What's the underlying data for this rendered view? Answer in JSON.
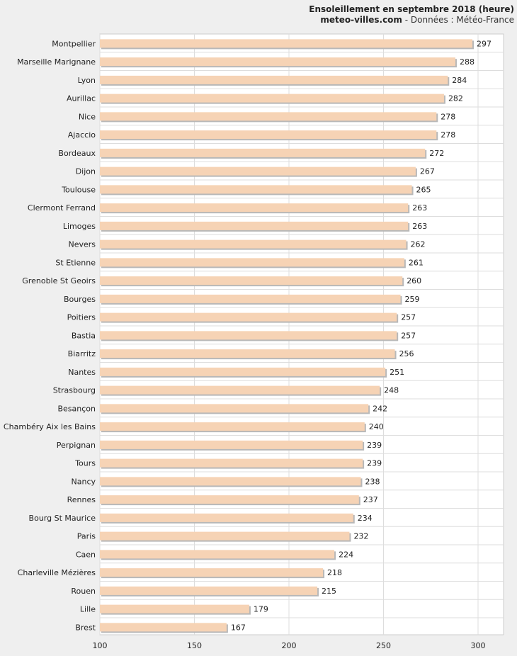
{
  "header": {
    "title": "Ensoleillement en septembre 2018 (heure)",
    "site": "meteo-villes.com",
    "source": " - Données : Météo-France"
  },
  "colors": {
    "bar": "#f6d3b5",
    "bar_shadow": "#b8b8b8",
    "background": "#efefef",
    "plot_background": "#ffffff",
    "grid": "#dddddd"
  },
  "chart_data": {
    "type": "bar",
    "orientation": "horizontal",
    "title": "Ensoleillement en septembre 2018 (heure)",
    "xlim": [
      100,
      315
    ],
    "xticks": [
      100,
      150,
      200,
      250,
      300
    ],
    "grid": true,
    "categories": [
      "Montpellier",
      "Marseille Marignane",
      "Lyon",
      "Aurillac",
      "Nice",
      "Ajaccio",
      "Bordeaux",
      "Dijon",
      "Toulouse",
      "Clermont Ferrand",
      "Limoges",
      "Nevers",
      "St Etienne",
      "Grenoble St Geoirs",
      "Bourges",
      "Poitiers",
      "Bastia",
      "Biarritz",
      "Nantes",
      "Strasbourg",
      "Besançon",
      "Chambéry Aix les Bains",
      "Perpignan",
      "Tours",
      "Nancy",
      "Rennes",
      "Bourg St Maurice",
      "Paris",
      "Caen",
      "Charleville Mézières",
      "Rouen",
      "Lille",
      "Brest"
    ],
    "values": [
      297,
      288,
      284,
      282,
      278,
      278,
      272,
      267,
      265,
      263,
      263,
      262,
      261,
      260,
      259,
      257,
      257,
      256,
      251,
      248,
      242,
      240,
      239,
      239,
      238,
      237,
      234,
      232,
      224,
      218,
      215,
      179,
      167
    ]
  }
}
